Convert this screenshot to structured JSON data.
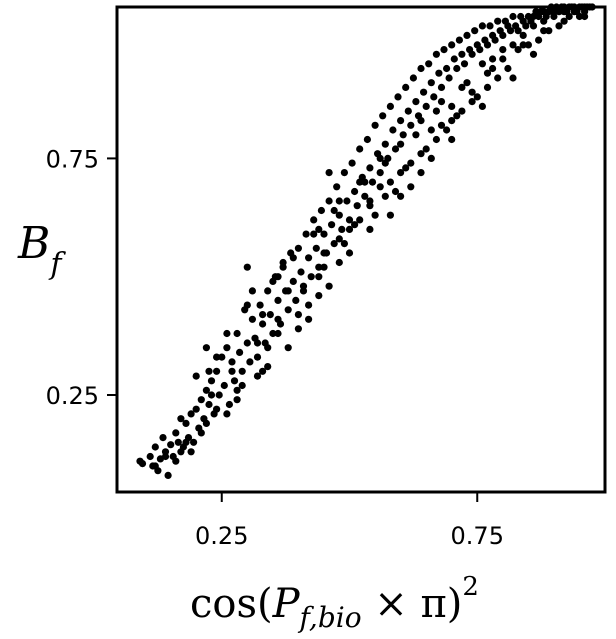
{
  "chart_data": {
    "type": "scatter",
    "title": "",
    "xlabel": {
      "main": "cos(",
      "var": "P",
      "sub": "f,bio",
      "times_pi": " × π)",
      "sup": "2"
    },
    "ylabel": {
      "var": "B",
      "sub": "f"
    },
    "xlim": [
      0.045,
      1.0
    ],
    "ylim": [
      0.045,
      1.07
    ],
    "xticks": [
      0.25,
      0.75
    ],
    "xtick_labels": [
      "0.25",
      "0.75"
    ],
    "yticks": [
      0.25,
      0.75
    ],
    "ytick_labels": [
      "0.25",
      "0.75"
    ],
    "grid": false,
    "legend": "none",
    "marker_color": "#000000",
    "points": [
      [
        0.09,
        0.11
      ],
      [
        0.095,
        0.105
      ],
      [
        0.11,
        0.12
      ],
      [
        0.115,
        0.1
      ],
      [
        0.12,
        0.14
      ],
      [
        0.125,
        0.09
      ],
      [
        0.13,
        0.115
      ],
      [
        0.135,
        0.16
      ],
      [
        0.14,
        0.13
      ],
      [
        0.145,
        0.08
      ],
      [
        0.15,
        0.145
      ],
      [
        0.155,
        0.12
      ],
      [
        0.16,
        0.17
      ],
      [
        0.165,
        0.15
      ],
      [
        0.17,
        0.13
      ],
      [
        0.175,
        0.14
      ],
      [
        0.18,
        0.19
      ],
      [
        0.185,
        0.16
      ],
      [
        0.19,
        0.21
      ],
      [
        0.195,
        0.15
      ],
      [
        0.2,
        0.22
      ],
      [
        0.205,
        0.18
      ],
      [
        0.21,
        0.24
      ],
      [
        0.215,
        0.2
      ],
      [
        0.22,
        0.26
      ],
      [
        0.225,
        0.23
      ],
      [
        0.225,
        0.3
      ],
      [
        0.23,
        0.28
      ],
      [
        0.235,
        0.21
      ],
      [
        0.24,
        0.3
      ],
      [
        0.245,
        0.25
      ],
      [
        0.25,
        0.33
      ],
      [
        0.255,
        0.27
      ],
      [
        0.26,
        0.35
      ],
      [
        0.265,
        0.23
      ],
      [
        0.27,
        0.32
      ],
      [
        0.275,
        0.28
      ],
      [
        0.28,
        0.38
      ],
      [
        0.285,
        0.34
      ],
      [
        0.29,
        0.3
      ],
      [
        0.295,
        0.43
      ],
      [
        0.3,
        0.36
      ],
      [
        0.305,
        0.32
      ],
      [
        0.31,
        0.41
      ],
      [
        0.315,
        0.37
      ],
      [
        0.32,
        0.33
      ],
      [
        0.325,
        0.44
      ],
      [
        0.33,
        0.4
      ],
      [
        0.335,
        0.36
      ],
      [
        0.34,
        0.47
      ],
      [
        0.345,
        0.42
      ],
      [
        0.35,
        0.38
      ],
      [
        0.355,
        0.5
      ],
      [
        0.36,
        0.45
      ],
      [
        0.365,
        0.4
      ],
      [
        0.37,
        0.52
      ],
      [
        0.375,
        0.47
      ],
      [
        0.38,
        0.43
      ],
      [
        0.385,
        0.55
      ],
      [
        0.39,
        0.49
      ],
      [
        0.395,
        0.45
      ],
      [
        0.4,
        0.56
      ],
      [
        0.405,
        0.51
      ],
      [
        0.41,
        0.47
      ],
      [
        0.415,
        0.59
      ],
      [
        0.42,
        0.54
      ],
      [
        0.425,
        0.5
      ],
      [
        0.43,
        0.62
      ],
      [
        0.435,
        0.56
      ],
      [
        0.44,
        0.52
      ],
      [
        0.445,
        0.64
      ],
      [
        0.45,
        0.59
      ],
      [
        0.455,
        0.55
      ],
      [
        0.46,
        0.66
      ],
      [
        0.465,
        0.61
      ],
      [
        0.47,
        0.57
      ],
      [
        0.475,
        0.69
      ],
      [
        0.48,
        0.63
      ],
      [
        0.485,
        0.6
      ],
      [
        0.49,
        0.72
      ],
      [
        0.495,
        0.66
      ],
      [
        0.5,
        0.62
      ],
      [
        0.505,
        0.74
      ],
      [
        0.51,
        0.68
      ],
      [
        0.515,
        0.65
      ],
      [
        0.52,
        0.77
      ],
      [
        0.525,
        0.71
      ],
      [
        0.53,
        0.67
      ],
      [
        0.535,
        0.79
      ],
      [
        0.54,
        0.73
      ],
      [
        0.545,
        0.7
      ],
      [
        0.55,
        0.82
      ],
      [
        0.555,
        0.76
      ],
      [
        0.56,
        0.72
      ],
      [
        0.565,
        0.84
      ],
      [
        0.57,
        0.78
      ],
      [
        0.575,
        0.75
      ],
      [
        0.58,
        0.86
      ],
      [
        0.585,
        0.81
      ],
      [
        0.59,
        0.77
      ],
      [
        0.595,
        0.88
      ],
      [
        0.6,
        0.83
      ],
      [
        0.605,
        0.8
      ],
      [
        0.61,
        0.9
      ],
      [
        0.615,
        0.85
      ],
      [
        0.62,
        0.82
      ],
      [
        0.625,
        0.92
      ],
      [
        0.63,
        0.87
      ],
      [
        0.635,
        0.84
      ],
      [
        0.64,
        0.94
      ],
      [
        0.645,
        0.89
      ],
      [
        0.65,
        0.86
      ],
      [
        0.655,
        0.95
      ],
      [
        0.66,
        0.91
      ],
      [
        0.665,
        0.88
      ],
      [
        0.67,
        0.97
      ],
      [
        0.675,
        0.93
      ],
      [
        0.68,
        0.9
      ],
      [
        0.685,
        0.98
      ],
      [
        0.69,
        0.94
      ],
      [
        0.695,
        0.92
      ],
      [
        0.7,
        0.99
      ],
      [
        0.705,
        0.96
      ],
      [
        0.71,
        0.94
      ],
      [
        0.715,
        1.0
      ],
      [
        0.72,
        0.97
      ],
      [
        0.725,
        0.95
      ],
      [
        0.73,
        1.01
      ],
      [
        0.735,
        0.98
      ],
      [
        0.74,
        0.97
      ],
      [
        0.745,
        1.02
      ],
      [
        0.75,
        0.99
      ],
      [
        0.755,
        0.98
      ],
      [
        0.76,
        1.03
      ],
      [
        0.765,
        1.0
      ],
      [
        0.77,
        0.99
      ],
      [
        0.775,
        1.03
      ],
      [
        0.78,
        1.01
      ],
      [
        0.785,
        1.0
      ],
      [
        0.79,
        1.04
      ],
      [
        0.795,
        1.02
      ],
      [
        0.8,
        1.01
      ],
      [
        0.805,
        1.04
      ],
      [
        0.81,
        1.03
      ],
      [
        0.815,
        1.02
      ],
      [
        0.82,
        1.05
      ],
      [
        0.825,
        1.03
      ],
      [
        0.83,
        1.02
      ],
      [
        0.835,
        1.05
      ],
      [
        0.84,
        1.04
      ],
      [
        0.845,
        1.03
      ],
      [
        0.85,
        1.05
      ],
      [
        0.855,
        1.04
      ],
      [
        0.86,
        1.05
      ],
      [
        0.865,
        1.06
      ],
      [
        0.87,
        1.05
      ],
      [
        0.875,
        1.06
      ],
      [
        0.88,
        1.06
      ],
      [
        0.885,
        1.05
      ],
      [
        0.89,
        1.06
      ],
      [
        0.895,
        1.07
      ],
      [
        0.9,
        1.06
      ],
      [
        0.905,
        1.07
      ],
      [
        0.91,
        1.06
      ],
      [
        0.915,
        1.07
      ],
      [
        0.92,
        1.07
      ],
      [
        0.925,
        1.06
      ],
      [
        0.93,
        1.07
      ],
      [
        0.935,
        1.07
      ],
      [
        0.94,
        1.07
      ],
      [
        0.945,
        1.06
      ],
      [
        0.95,
        1.07
      ],
      [
        0.955,
        1.07
      ],
      [
        0.96,
        1.06
      ],
      [
        0.965,
        1.07
      ],
      [
        0.97,
        1.07
      ],
      [
        0.975,
        1.07
      ],
      [
        0.3,
        0.52
      ],
      [
        0.36,
        0.5
      ],
      [
        0.42,
        0.44
      ],
      [
        0.46,
        0.72
      ],
      [
        0.52,
        0.62
      ],
      [
        0.58,
        0.7
      ],
      [
        0.62,
        0.74
      ],
      [
        0.68,
        0.82
      ],
      [
        0.72,
        0.85
      ],
      [
        0.28,
        0.24
      ],
      [
        0.34,
        0.31
      ],
      [
        0.4,
        0.39
      ],
      [
        0.44,
        0.46
      ],
      [
        0.48,
        0.53
      ],
      [
        0.54,
        0.6
      ],
      [
        0.6,
        0.67
      ],
      [
        0.64,
        0.72
      ],
      [
        0.7,
        0.79
      ],
      [
        0.76,
        0.86
      ],
      [
        0.82,
        0.92
      ],
      [
        0.86,
        0.97
      ],
      [
        0.31,
        0.47
      ],
      [
        0.37,
        0.53
      ],
      [
        0.43,
        0.59
      ],
      [
        0.47,
        0.64
      ],
      [
        0.53,
        0.7
      ],
      [
        0.57,
        0.74
      ],
      [
        0.63,
        0.8
      ],
      [
        0.67,
        0.85
      ],
      [
        0.73,
        0.91
      ],
      [
        0.77,
        0.93
      ],
      [
        0.83,
        0.98
      ],
      [
        0.2,
        0.29
      ],
      [
        0.24,
        0.33
      ],
      [
        0.33,
        0.42
      ],
      [
        0.38,
        0.47
      ],
      [
        0.45,
        0.52
      ],
      [
        0.49,
        0.57
      ],
      [
        0.55,
        0.63
      ],
      [
        0.59,
        0.68
      ],
      [
        0.65,
        0.77
      ],
      [
        0.69,
        0.81
      ],
      [
        0.75,
        0.88
      ],
      [
        0.79,
        0.92
      ],
      [
        0.85,
        0.99
      ],
      [
        0.89,
        1.02
      ],
      [
        0.93,
        1.05
      ],
      [
        0.17,
        0.2
      ],
      [
        0.23,
        0.25
      ],
      [
        0.27,
        0.3
      ],
      [
        0.32,
        0.36
      ],
      [
        0.36,
        0.41
      ],
      [
        0.41,
        0.48
      ],
      [
        0.45,
        0.55
      ],
      [
        0.51,
        0.61
      ],
      [
        0.57,
        0.67
      ],
      [
        0.61,
        0.73
      ],
      [
        0.67,
        0.79
      ],
      [
        0.71,
        0.84
      ],
      [
        0.77,
        0.9
      ],
      [
        0.81,
        0.94
      ],
      [
        0.87,
        1.0
      ],
      [
        0.91,
        1.03
      ],
      [
        0.95,
        1.05
      ],
      [
        0.22,
        0.35
      ],
      [
        0.26,
        0.38
      ],
      [
        0.3,
        0.44
      ],
      [
        0.35,
        0.49
      ],
      [
        0.39,
        0.54
      ],
      [
        0.44,
        0.6
      ],
      [
        0.48,
        0.66
      ],
      [
        0.52,
        0.7
      ],
      [
        0.56,
        0.75
      ],
      [
        0.6,
        0.78
      ],
      [
        0.64,
        0.83
      ],
      [
        0.68,
        0.87
      ],
      [
        0.72,
        0.9
      ],
      [
        0.76,
        0.95
      ],
      [
        0.8,
        0.98
      ],
      [
        0.84,
        1.01
      ],
      [
        0.88,
        1.04
      ],
      [
        0.92,
        1.06
      ],
      [
        0.96,
        1.07
      ],
      [
        0.19,
        0.13
      ],
      [
        0.21,
        0.17
      ],
      [
        0.26,
        0.21
      ],
      [
        0.29,
        0.27
      ],
      [
        0.33,
        0.3
      ],
      [
        0.38,
        0.35
      ],
      [
        0.42,
        0.41
      ],
      [
        0.46,
        0.48
      ],
      [
        0.5,
        0.55
      ],
      [
        0.54,
        0.65
      ],
      [
        0.58,
        0.63
      ],
      [
        0.62,
        0.69
      ],
      [
        0.66,
        0.75
      ],
      [
        0.7,
        0.83
      ],
      [
        0.74,
        0.87
      ],
      [
        0.78,
        0.96
      ],
      [
        0.82,
        0.99
      ],
      [
        0.86,
        1.03
      ],
      [
        0.9,
        1.05
      ],
      [
        0.94,
        1.06
      ],
      [
        0.12,
        0.1
      ],
      [
        0.14,
        0.12
      ],
      [
        0.16,
        0.11
      ],
      [
        0.18,
        0.15
      ],
      [
        0.22,
        0.19
      ],
      [
        0.24,
        0.22
      ],
      [
        0.28,
        0.26
      ],
      [
        0.32,
        0.29
      ],
      [
        0.34,
        0.35
      ],
      [
        0.36,
        0.38
      ],
      [
        0.4,
        0.42
      ],
      [
        0.44,
        0.5
      ],
      [
        0.48,
        0.58
      ],
      [
        0.5,
        0.6
      ],
      [
        0.54,
        0.66
      ],
      [
        0.56,
        0.69
      ],
      [
        0.6,
        0.72
      ],
      [
        0.64,
        0.76
      ],
      [
        0.66,
        0.81
      ],
      [
        0.7,
        0.86
      ],
      [
        0.74,
        0.89
      ],
      [
        0.78,
        0.94
      ],
      [
        0.8,
        0.96
      ],
      [
        0.84,
        0.99
      ],
      [
        0.88,
        1.02
      ],
      [
        0.92,
        1.04
      ],
      [
        0.96,
        1.05
      ]
    ]
  }
}
